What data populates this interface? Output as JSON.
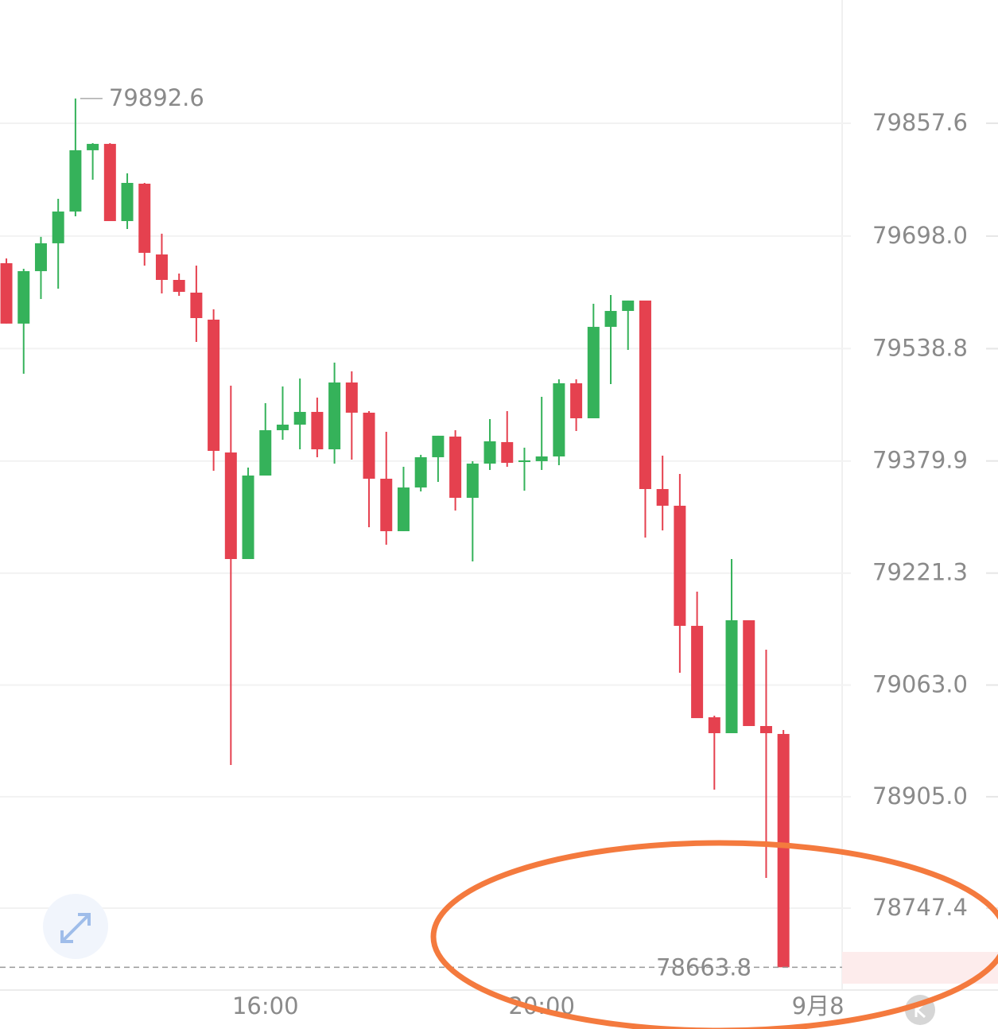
{
  "chart_data": {
    "type": "candlestick",
    "open": [
      79659.6,
      79574.2,
      79648.4,
      79687.8,
      79732.7,
      79819.4,
      79828.4,
      79719.2,
      79772.1,
      79672.0,
      79636.0,
      79618.0,
      79579.8,
      79391.9,
      79241.2,
      79359.3,
      79423.4,
      79431.3,
      79449.3,
      79396.4,
      79490.9,
      79448.2,
      79354.8,
      79280.6,
      79342.4,
      79385.2,
      79414.4,
      79327.8,
      79376.2,
      79406.6,
      79378.4,
      79379.6,
      79386.3,
      79489.8,
      79440.3,
      79569.6,
      79592.1,
      79606.8,
      79340.2,
      79316.6,
      79146.7,
      79017.4,
      78994.9,
      79154.6,
      79005.0,
      78993.8
    ],
    "high": [
      79666.4,
      79651.8,
      79696.8,
      79750.7,
      79892.6,
      79829.5,
      79829.5,
      79786.7,
      79773.2,
      79701.3,
      79645.0,
      79656.3,
      79594.4,
      79486.4,
      79370.6,
      79461.7,
      79485.3,
      79496.5,
      79469.5,
      79519.0,
      79506.7,
      79450.4,
      79421.2,
      79371.7,
      79388.6,
      79415.6,
      79423.4,
      79379.6,
      79439.2,
      79450.4,
      79398.7,
      79470.7,
      79495.4,
      79495.4,
      79602.3,
      79614.6,
      79606.8,
      79606.8,
      79387.4,
      79361.6,
      79195.1,
      79019.6,
      79241.2,
      79154.6,
      79113.0,
      78999.4
    ],
    "low": [
      79574.2,
      79503.3,
      79609.0,
      79623.6,
      79726.0,
      79777.7,
      79719.2,
      79708.0,
      79656.3,
      79616.9,
      79613.5,
      79548.3,
      79366.1,
      78949.9,
      79241.2,
      79359.3,
      79409.9,
      79396.4,
      79385.2,
      79376.2,
      79381.8,
      79286.2,
      79261.5,
      79280.6,
      79336.8,
      79350.3,
      79309.8,
      79237.8,
      79367.2,
      79371.7,
      79337.9,
      79367.2,
      79373.9,
      79422.3,
      79440.3,
      79488.7,
      79537.0,
      79271.6,
      79281.7,
      79080.4,
      79016.2,
      78915.0,
      78994.9,
      79005.0,
      78790.2,
      78663.8
    ],
    "close": [
      79574.2,
      79648.4,
      79687.8,
      79732.7,
      79819.4,
      79828.4,
      79719.2,
      79773.2,
      79674.3,
      79636.0,
      79619.1,
      79582.0,
      79394.2,
      79241.2,
      79359.3,
      79423.4,
      79431.3,
      79449.3,
      79396.4,
      79490.9,
      79448.2,
      79354.8,
      79280.6,
      79342.4,
      79385.2,
      79415.6,
      79327.8,
      79376.2,
      79407.7,
      79377.3,
      79380.7,
      79386.3,
      79489.8,
      79440.3,
      79569.6,
      79592.1,
      79606.8,
      79340.2,
      79316.6,
      79146.7,
      79016.2,
      78994.9,
      79154.6,
      79005.0,
      78994.9,
      78663.8
    ],
    "up_color": "#35b25a",
    "down_color": "#e5414f",
    "ylim": [
      78631.6,
      80031.9
    ],
    "yticks": [
      79857.6,
      {
        "value": 79698.0,
        "label": "79698.0"
      },
      79538.8,
      79379.9,
      79221.3,
      {
        "value": 79063.0,
        "label": "79063.0"
      },
      {
        "value": 78905.0,
        "label": "78905.0"
      },
      78747.4
    ],
    "xlim": [
      -0.37,
      48.4
    ],
    "xticks": [
      {
        "value": 15,
        "label": "16:00"
      },
      {
        "value": 31,
        "label": "20:00"
      },
      {
        "value": 47,
        "label": "9月8"
      }
    ],
    "grid": true
  }
}
